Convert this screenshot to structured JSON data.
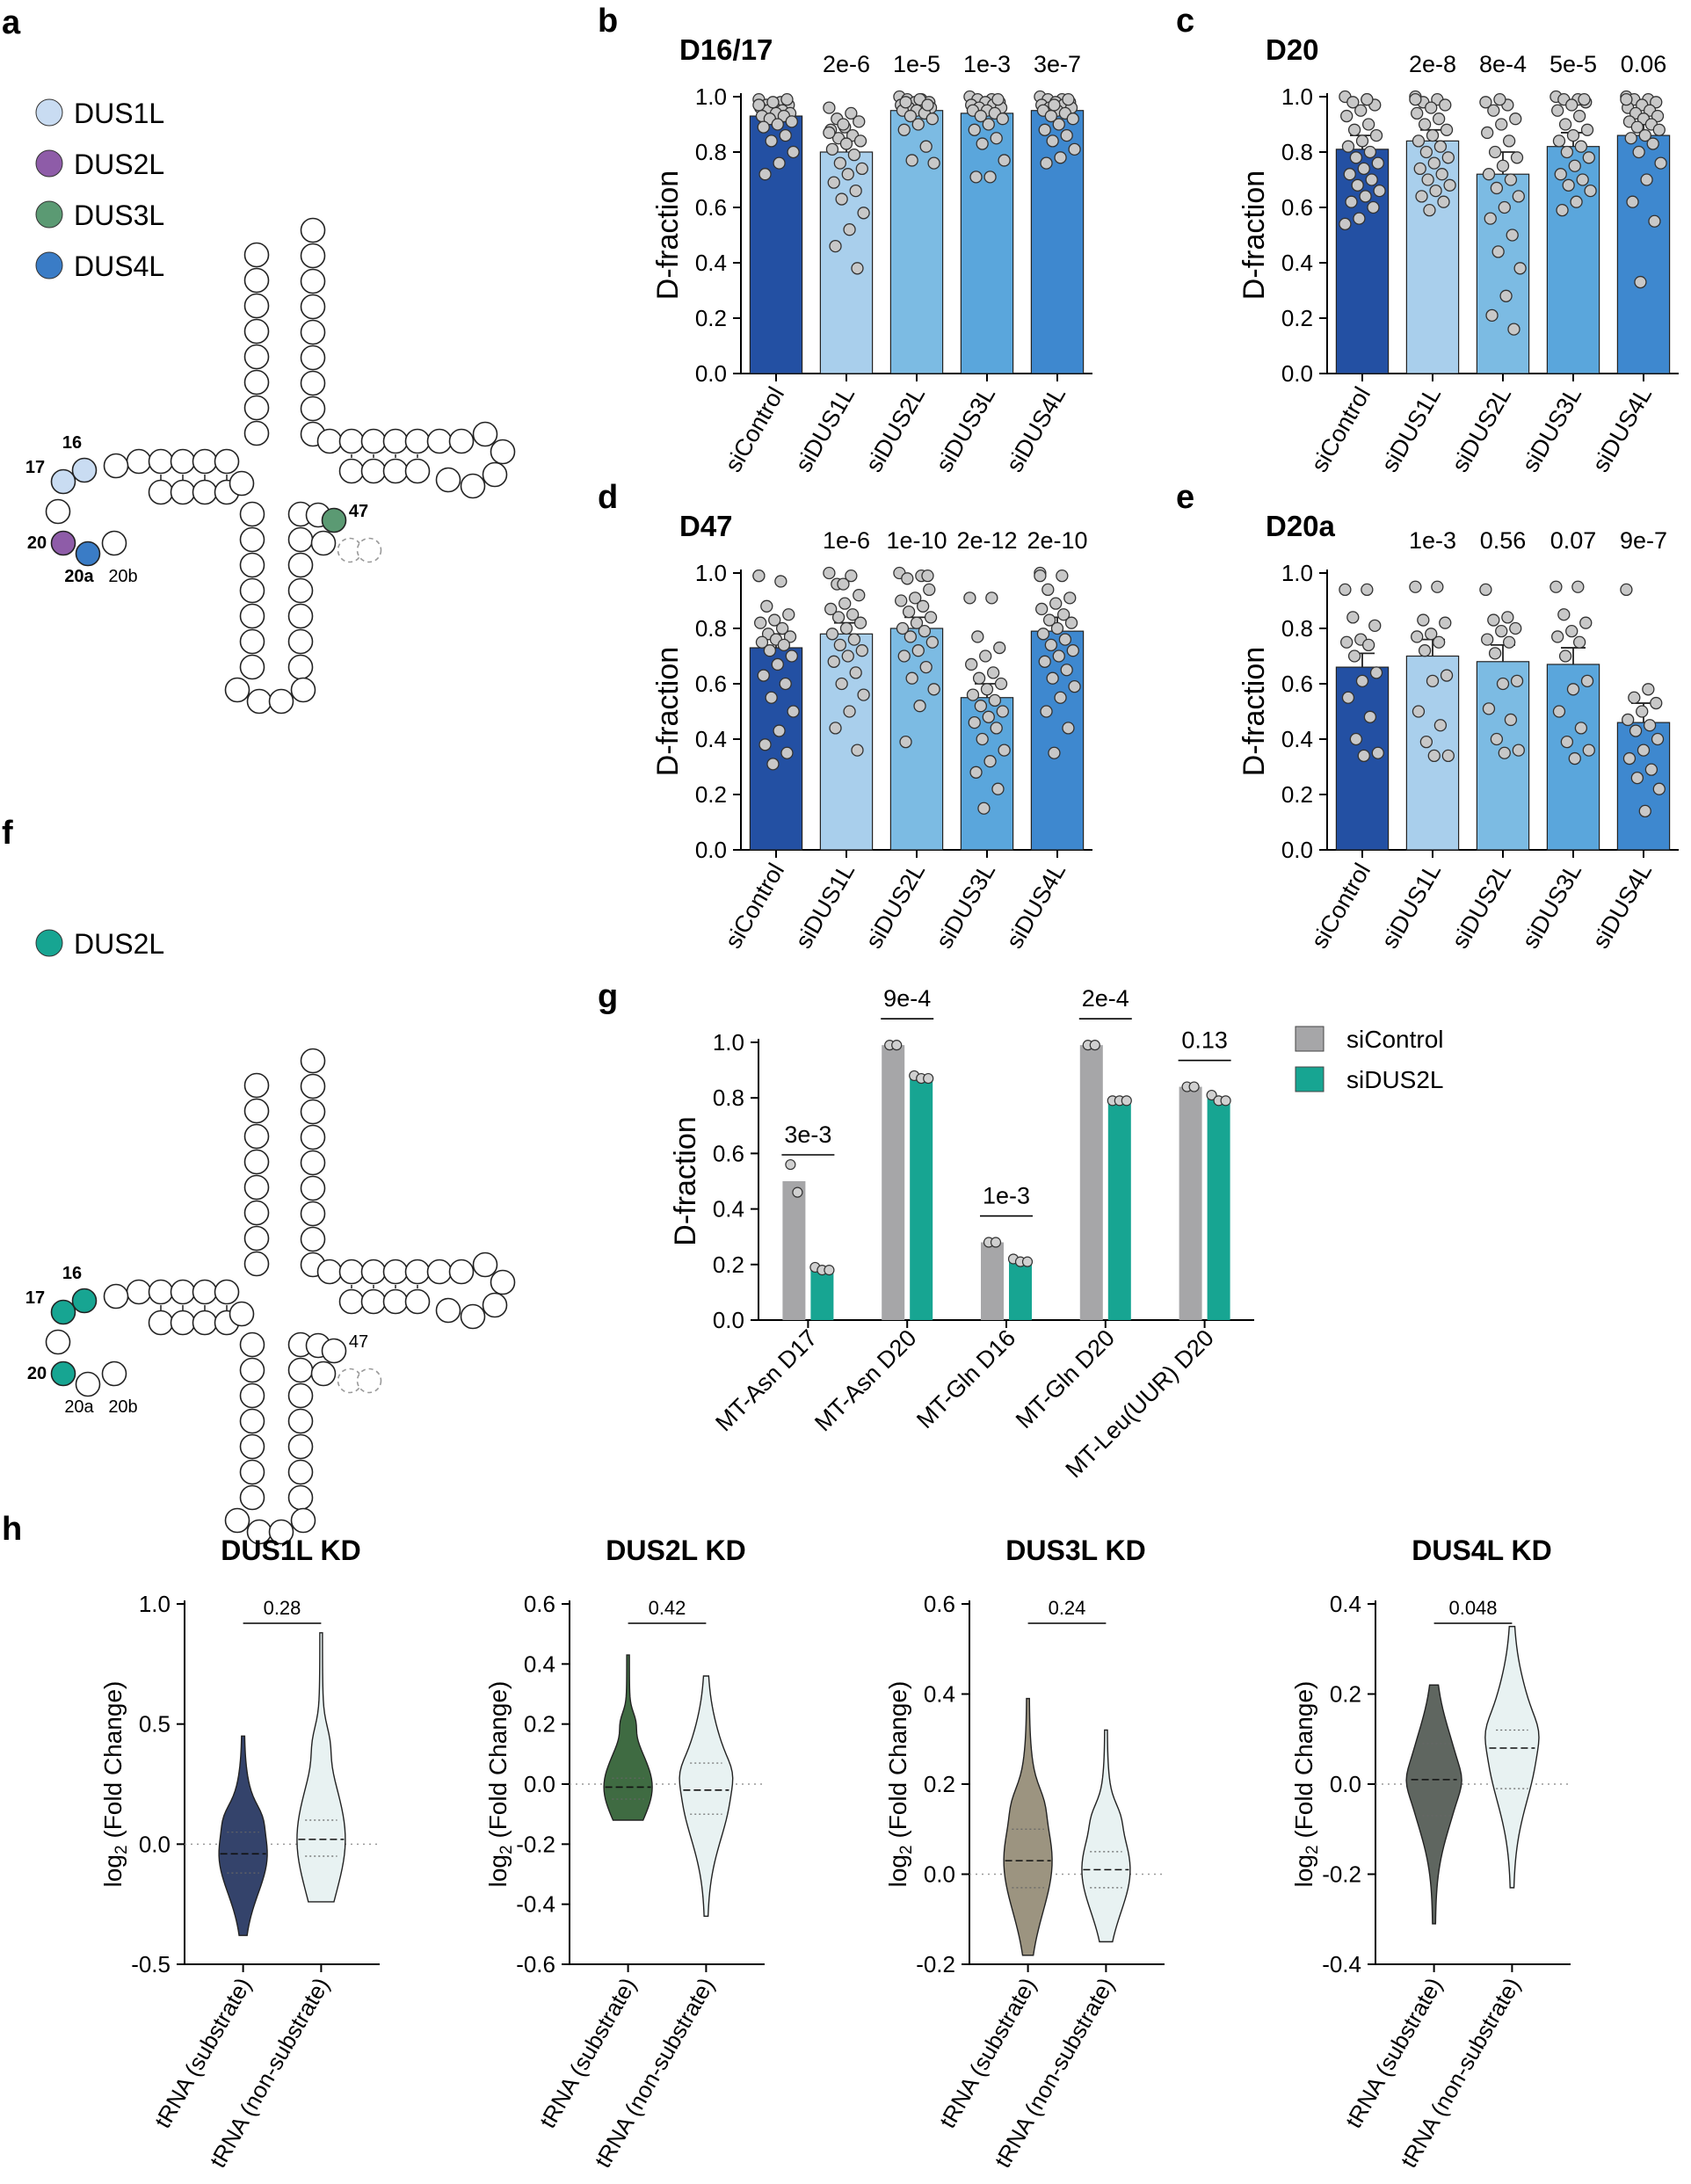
{
  "panel_labels": {
    "a": "a",
    "b": "b",
    "c": "c",
    "d": "d",
    "e": "e",
    "f": "f",
    "g": "g",
    "h": "h"
  },
  "colors": {
    "DUS1L": "#c9dcf2",
    "DUS2L": "#8e5ca8",
    "DUS3L": "#5b9a73",
    "DUS4L": "#3a7cc6",
    "DUS2L_teal": "#17a592",
    "bar_siControl": "#2350a3",
    "bar_siDUS1L": "#a9cfec",
    "bar_siDUS2L": "#7cbbe3",
    "bar_siDUS3L": "#5aa6dc",
    "bar_siDUS4L": "#3e88cf",
    "g_siControl": "#a6a6a8",
    "g_siDUS2L": "#17a592",
    "violin_DUS1L": "#34436b",
    "violin_DUS2L": "#3f6b42",
    "violin_DUS3L": "#9c9480",
    "violin_DUS4L": "#5f6660",
    "violin_nonsub": "#e8f2f2"
  },
  "diagram_a": {
    "legend": [
      "DUS1L",
      "DUS2L",
      "DUS3L",
      "DUS4L"
    ],
    "site_labels": {
      "s16": "16",
      "s17": "17",
      "s20": "20",
      "s20a": "20a",
      "s20b": "20b",
      "s47": "47"
    }
  },
  "diagram_f": {
    "legend": [
      "DUS2L"
    ],
    "site_labels": {
      "s16": "16",
      "s17": "17",
      "s20": "20",
      "s20a": "20a",
      "s20b": "20b",
      "s47": "47"
    }
  },
  "chart_data": [
    {
      "id": "b",
      "type": "bar",
      "title": "D16/17",
      "categories": [
        "siControl",
        "siDUS1L",
        "siDUS2L",
        "siDUS3L",
        "siDUS4L"
      ],
      "values": [
        0.93,
        0.8,
        0.95,
        0.94,
        0.95
      ],
      "errors": [
        0.02,
        0.05,
        0.01,
        0.02,
        0.02
      ],
      "pvalues": [
        "",
        "2e-6",
        "1e-5",
        "1e-3",
        "3e-7"
      ],
      "ylabel": "D-fraction",
      "ylim": [
        0,
        1
      ],
      "yticks": [
        "0.0",
        "0.2",
        "0.4",
        "0.6",
        "0.8",
        "1.0"
      ],
      "points": [
        [
          0.99,
          0.98,
          0.97,
          0.97,
          0.96,
          0.96,
          0.95,
          0.95,
          0.94,
          0.94,
          0.93,
          0.93,
          0.92,
          0.91,
          0.9,
          0.89,
          0.86,
          0.84,
          0.8,
          0.76,
          0.72,
          0.99,
          0.98,
          0.97
        ],
        [
          0.96,
          0.94,
          0.92,
          0.91,
          0.89,
          0.88,
          0.86,
          0.85,
          0.84,
          0.83,
          0.81,
          0.79,
          0.76,
          0.74,
          0.72,
          0.69,
          0.66,
          0.63,
          0.58,
          0.52,
          0.46,
          0.38,
          0.9,
          0.87
        ],
        [
          1.0,
          0.99,
          0.99,
          0.98,
          0.98,
          0.97,
          0.97,
          0.96,
          0.96,
          0.95,
          0.95,
          0.94,
          0.93,
          0.92,
          0.9,
          0.88,
          0.82,
          0.77,
          0.76,
          0.99,
          0.98,
          0.97
        ],
        [
          1.0,
          0.99,
          0.99,
          0.98,
          0.98,
          0.97,
          0.97,
          0.96,
          0.96,
          0.95,
          0.95,
          0.94,
          0.93,
          0.92,
          0.9,
          0.88,
          0.85,
          0.83,
          0.77,
          0.71,
          0.71,
          0.99
        ],
        [
          1.0,
          0.99,
          0.99,
          0.98,
          0.98,
          0.97,
          0.97,
          0.96,
          0.96,
          0.95,
          0.95,
          0.94,
          0.93,
          0.92,
          0.9,
          0.88,
          0.86,
          0.84,
          0.81,
          0.78,
          0.76,
          0.99,
          0.97
        ]
      ]
    },
    {
      "id": "c",
      "type": "bar",
      "title": "D20",
      "categories": [
        "siControl",
        "siDUS1L",
        "siDUS2L",
        "siDUS3L",
        "siDUS4L"
      ],
      "values": [
        0.81,
        0.84,
        0.72,
        0.82,
        0.86
      ],
      "errors": [
        0.05,
        0.04,
        0.08,
        0.05,
        0.04
      ],
      "pvalues": [
        "",
        "2e-8",
        "8e-4",
        "5e-5",
        "0.06"
      ],
      "ylabel": "D-fraction",
      "ylim": [
        0,
        1
      ],
      "yticks": [
        "0.0",
        "0.2",
        "0.4",
        "0.6",
        "0.8",
        "1.0"
      ],
      "points": [
        [
          1.0,
          0.99,
          0.98,
          0.97,
          0.95,
          0.93,
          0.9,
          0.88,
          0.86,
          0.84,
          0.82,
          0.8,
          0.78,
          0.76,
          0.74,
          0.72,
          0.7,
          0.68,
          0.66,
          0.64,
          0.62,
          0.6,
          0.56,
          0.54,
          0.99
        ],
        [
          1.0,
          0.99,
          0.98,
          0.97,
          0.96,
          0.94,
          0.92,
          0.9,
          0.88,
          0.86,
          0.84,
          0.82,
          0.8,
          0.78,
          0.76,
          0.74,
          0.72,
          0.7,
          0.68,
          0.66,
          0.64,
          0.62,
          0.59,
          0.99
        ],
        [
          0.98,
          0.97,
          0.95,
          0.92,
          0.9,
          0.87,
          0.84,
          0.8,
          0.78,
          0.75,
          0.72,
          0.7,
          0.67,
          0.64,
          0.6,
          0.56,
          0.5,
          0.44,
          0.38,
          0.28,
          0.21,
          0.16,
          0.99
        ],
        [
          1.0,
          0.99,
          0.99,
          0.98,
          0.97,
          0.95,
          0.93,
          0.9,
          0.88,
          0.86,
          0.84,
          0.82,
          0.8,
          0.78,
          0.75,
          0.72,
          0.7,
          0.68,
          0.66,
          0.62,
          0.59,
          0.99
        ],
        [
          1.0,
          0.99,
          0.99,
          0.98,
          0.97,
          0.96,
          0.95,
          0.94,
          0.93,
          0.92,
          0.91,
          0.9,
          0.89,
          0.88,
          0.86,
          0.85,
          0.83,
          0.8,
          0.76,
          0.7,
          0.62,
          0.55,
          0.33,
          0.99
        ]
      ]
    },
    {
      "id": "d",
      "type": "bar",
      "title": "D47",
      "categories": [
        "siControl",
        "siDUS1L",
        "siDUS2L",
        "siDUS3L",
        "siDUS4L"
      ],
      "values": [
        0.73,
        0.78,
        0.8,
        0.55,
        0.79
      ],
      "errors": [
        0.05,
        0.04,
        0.04,
        0.05,
        0.05
      ],
      "pvalues": [
        "",
        "1e-6",
        "1e-10",
        "2e-12",
        "2e-10"
      ],
      "ylabel": "D-fraction",
      "ylim": [
        0,
        1
      ],
      "yticks": [
        "0.0",
        "0.2",
        "0.4",
        "0.6",
        "0.8",
        "1.0"
      ],
      "points": [
        [
          0.99,
          0.97,
          0.88,
          0.85,
          0.83,
          0.82,
          0.8,
          0.78,
          0.77,
          0.76,
          0.75,
          0.74,
          0.72,
          0.7,
          0.67,
          0.63,
          0.6,
          0.55,
          0.5,
          0.43,
          0.38,
          0.35,
          0.31,
          0.99
        ],
        [
          1.0,
          0.99,
          0.96,
          0.92,
          0.89,
          0.87,
          0.85,
          0.84,
          0.82,
          0.8,
          0.78,
          0.76,
          0.74,
          0.72,
          0.7,
          0.68,
          0.64,
          0.6,
          0.56,
          0.5,
          0.44,
          0.36,
          0.96
        ],
        [
          1.0,
          0.99,
          0.98,
          0.94,
          0.91,
          0.9,
          0.88,
          0.86,
          0.84,
          0.82,
          0.8,
          0.79,
          0.77,
          0.75,
          0.72,
          0.7,
          0.66,
          0.62,
          0.58,
          0.52,
          0.39,
          0.99
        ],
        [
          0.91,
          0.91,
          0.77,
          0.73,
          0.7,
          0.67,
          0.64,
          0.62,
          0.6,
          0.58,
          0.56,
          0.54,
          0.52,
          0.5,
          0.48,
          0.46,
          0.44,
          0.4,
          0.36,
          0.32,
          0.28,
          0.22,
          0.15
        ],
        [
          1.0,
          0.99,
          0.94,
          0.91,
          0.89,
          0.87,
          0.85,
          0.83,
          0.82,
          0.8,
          0.78,
          0.76,
          0.74,
          0.72,
          0.7,
          0.68,
          0.65,
          0.62,
          0.59,
          0.55,
          0.5,
          0.44,
          0.35,
          0.99
        ]
      ]
    },
    {
      "id": "e",
      "type": "bar",
      "title": "D20a",
      "categories": [
        "siControl",
        "siDUS1L",
        "siDUS2L",
        "siDUS3L",
        "siDUS4L"
      ],
      "values": [
        0.66,
        0.7,
        0.68,
        0.67,
        0.46
      ],
      "errors": [
        0.05,
        0.06,
        0.06,
        0.06,
        0.07
      ],
      "pvalues": [
        "",
        "1e-3",
        "0.56",
        "0.07",
        "9e-7"
      ],
      "ylabel": "D-fraction",
      "ylim": [
        0,
        1
      ],
      "yticks": [
        "0.0",
        "0.2",
        "0.4",
        "0.6",
        "0.8",
        "1.0"
      ],
      "points": [
        [
          0.94,
          0.94,
          0.84,
          0.81,
          0.76,
          0.75,
          0.74,
          0.7,
          0.64,
          0.61,
          0.55,
          0.48,
          0.4,
          0.35,
          0.34
        ],
        [
          0.95,
          0.95,
          0.83,
          0.82,
          0.78,
          0.77,
          0.75,
          0.72,
          0.63,
          0.61,
          0.5,
          0.45,
          0.39,
          0.34,
          0.34
        ],
        [
          0.94,
          0.84,
          0.83,
          0.8,
          0.79,
          0.76,
          0.75,
          0.71,
          0.61,
          0.6,
          0.51,
          0.47,
          0.4,
          0.36,
          0.35
        ],
        [
          0.95,
          0.95,
          0.85,
          0.82,
          0.79,
          0.77,
          0.75,
          0.7,
          0.61,
          0.58,
          0.5,
          0.44,
          0.39,
          0.36,
          0.33
        ],
        [
          0.94,
          0.58,
          0.55,
          0.53,
          0.5,
          0.47,
          0.45,
          0.43,
          0.4,
          0.36,
          0.33,
          0.29,
          0.26,
          0.22,
          0.14
        ]
      ]
    },
    {
      "id": "g",
      "type": "bar",
      "title": "",
      "categories": [
        "MT-Asn D17",
        "MT-Asn D20",
        "MT-Gln D16",
        "MT-Gln D20",
        "MT-Leu(UUR) D20"
      ],
      "series": [
        {
          "name": "siControl",
          "values": [
            0.5,
            0.99,
            0.28,
            0.99,
            0.84
          ],
          "points": [
            [
              0.56,
              0.46
            ],
            [
              0.99,
              0.99
            ],
            [
              0.28,
              0.28
            ],
            [
              0.99,
              0.99
            ],
            [
              0.84,
              0.84
            ]
          ]
        },
        {
          "name": "siDUS2L",
          "values": [
            0.18,
            0.87,
            0.21,
            0.79,
            0.8
          ],
          "points": [
            [
              0.19,
              0.18,
              0.18
            ],
            [
              0.88,
              0.87,
              0.87
            ],
            [
              0.22,
              0.21,
              0.21
            ],
            [
              0.79,
              0.79,
              0.79
            ],
            [
              0.81,
              0.79,
              0.79
            ]
          ]
        }
      ],
      "pvalues": [
        "3e-3",
        "9e-4",
        "1e-3",
        "2e-4",
        "0.13"
      ],
      "ylabel": "D-fraction",
      "ylim": [
        0,
        1
      ],
      "yticks": [
        "0.0",
        "0.2",
        "0.4",
        "0.6",
        "0.8",
        "1.0"
      ]
    },
    {
      "id": "h1",
      "type": "violin",
      "title": "DUS1L KD",
      "categories": [
        "tRNA (substrate)",
        "tRNA (non-substrate)"
      ],
      "ylim": [
        -0.5,
        1.0
      ],
      "yticks": [
        "-0.5",
        "0.0",
        "0.5",
        "1.0"
      ],
      "ylabel": "log2 (Fold Change)",
      "pvalue": "0.28",
      "medians": [
        -0.04,
        0.02
      ],
      "quartiles": [
        [
          -0.12,
          0.05
        ],
        [
          -0.05,
          0.1
        ]
      ],
      "range": [
        [
          -0.38,
          0.45
        ],
        [
          -0.24,
          0.88
        ]
      ]
    },
    {
      "id": "h2",
      "type": "violin",
      "title": "DUS2L KD",
      "categories": [
        "tRNA (substrate)",
        "tRNA (non-substrate)"
      ],
      "ylim": [
        -0.6,
        0.6
      ],
      "yticks": [
        "-0.6",
        "-0.4",
        "-0.2",
        "0.0",
        "0.2",
        "0.4",
        "0.6"
      ],
      "ylabel": "log2 (Fold Change)",
      "pvalue": "0.42",
      "medians": [
        -0.01,
        -0.02
      ],
      "quartiles": [
        [
          -0.05,
          0.02
        ],
        [
          -0.1,
          0.07
        ]
      ],
      "range": [
        [
          -0.12,
          0.43
        ],
        [
          -0.44,
          0.36
        ]
      ]
    },
    {
      "id": "h3",
      "type": "violin",
      "title": "DUS3L KD",
      "categories": [
        "tRNA (substrate)",
        "tRNA (non-substrate)"
      ],
      "ylim": [
        -0.2,
        0.6
      ],
      "yticks": [
        "-0.2",
        "0.0",
        "0.2",
        "0.4",
        "0.6"
      ],
      "ylabel": "log2 (Fold Change)",
      "pvalue": "0.24",
      "medians": [
        0.03,
        0.01
      ],
      "quartiles": [
        [
          -0.03,
          0.1
        ],
        [
          -0.03,
          0.05
        ]
      ],
      "range": [
        [
          -0.18,
          0.39
        ],
        [
          -0.15,
          0.32
        ]
      ]
    },
    {
      "id": "h4",
      "type": "violin",
      "title": "DUS4L KD",
      "categories": [
        "tRNA (substrate)",
        "tRNA (non-substrate)"
      ],
      "ylim": [
        -0.4,
        0.4
      ],
      "yticks": [
        "-0.4",
        "-0.2",
        "0.0",
        "0.2",
        "0.4"
      ],
      "ylabel": "log2 (Fold Change)",
      "pvalue": "0.048",
      "medians": [
        0.01,
        0.08
      ],
      "quartiles": [
        [
          -0.07,
          0.09
        ],
        [
          -0.01,
          0.12
        ]
      ],
      "range": [
        [
          -0.31,
          0.22
        ],
        [
          -0.23,
          0.35
        ]
      ]
    }
  ]
}
